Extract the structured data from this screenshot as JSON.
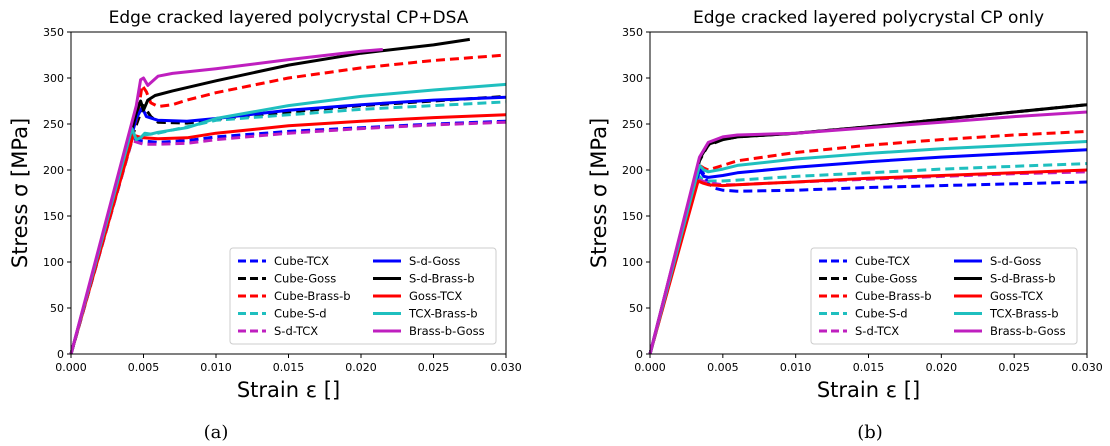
{
  "colors": {
    "Cube-TCX": "#0000ff",
    "Cube-Goss": "#000000",
    "Cube-Brass-b": "#ff0000",
    "Cube-S-d": "#1fbfbf",
    "S-d-TCX": "#bf1fbf",
    "S-d-Goss": "#0000ff",
    "S-d-Brass-b": "#000000",
    "Goss-TCX": "#ff0000",
    "TCX-Brass-b": "#1fbfbf",
    "Brass-b-Goss": "#bf1fbf"
  },
  "chart_data": [
    {
      "type": "line",
      "caption": "(a)",
      "title": "Edge cracked layered polycrystal CP+DSA",
      "xlabel": "Strain ε []",
      "ylabel": "Stress σ [MPa]",
      "xlim": [
        0,
        0.03
      ],
      "ylim": [
        0,
        350
      ],
      "xticks": [
        "0.000",
        "0.005",
        "0.010",
        "0.015",
        "0.020",
        "0.025",
        "0.030"
      ],
      "yticks": [
        "0",
        "50",
        "100",
        "150",
        "200",
        "250",
        "300",
        "350"
      ],
      "grid": false,
      "legend_position": "lower-right",
      "series": [
        {
          "name": "Cube-TCX",
          "dash": true,
          "x": [
            0,
            0.0042,
            0.0045,
            0.0048,
            0.006,
            0.008,
            0.01,
            0.015,
            0.02,
            0.025,
            0.03
          ],
          "y": [
            0,
            232,
            233,
            232,
            230,
            232,
            236,
            242,
            246,
            250,
            253
          ]
        },
        {
          "name": "Cube-Goss",
          "dash": true,
          "x": [
            0,
            0.0043,
            0.0048,
            0.005,
            0.0055,
            0.006,
            0.008,
            0.01,
            0.015,
            0.02,
            0.025,
            0.03
          ],
          "y": [
            0,
            240,
            262,
            270,
            258,
            252,
            251,
            255,
            263,
            270,
            275,
            280
          ]
        },
        {
          "name": "Cube-Brass-b",
          "dash": true,
          "x": [
            0,
            0.0046,
            0.0049,
            0.0052,
            0.0055,
            0.006,
            0.007,
            0.008,
            0.01,
            0.015,
            0.02,
            0.025,
            0.03
          ],
          "y": [
            0,
            260,
            292,
            285,
            273,
            269,
            271,
            276,
            284,
            300,
            311,
            319,
            325
          ]
        },
        {
          "name": "Cube-S-d",
          "dash": true,
          "x": [
            0,
            0.0043,
            0.0047,
            0.005,
            0.006,
            0.008,
            0.01,
            0.015,
            0.02,
            0.025,
            0.03
          ],
          "y": [
            0,
            237,
            235,
            238,
            240,
            247,
            254,
            260,
            266,
            270,
            274
          ]
        },
        {
          "name": "S-d-TCX",
          "dash": true,
          "x": [
            0,
            0.0042,
            0.0046,
            0.005,
            0.006,
            0.008,
            0.01,
            0.015,
            0.02,
            0.025,
            0.03
          ],
          "y": [
            0,
            232,
            230,
            228,
            228,
            229,
            233,
            240,
            245,
            249,
            252
          ]
        },
        {
          "name": "S-d-Goss",
          "dash": false,
          "x": [
            0,
            0.0045,
            0.0049,
            0.0052,
            0.006,
            0.008,
            0.01,
            0.015,
            0.02,
            0.025,
            0.03
          ],
          "y": [
            0,
            256,
            268,
            258,
            254,
            253,
            256,
            265,
            271,
            276,
            279
          ]
        },
        {
          "name": "S-d-Brass-b",
          "dash": false,
          "x": [
            0,
            0.0045,
            0.0048,
            0.005,
            0.0053,
            0.0058,
            0.007,
            0.01,
            0.015,
            0.02,
            0.025,
            0.0275
          ],
          "y": [
            0,
            262,
            275,
            265,
            276,
            281,
            286,
            297,
            314,
            327,
            336,
            342
          ]
        },
        {
          "name": "Goss-TCX",
          "dash": false,
          "x": [
            0,
            0.0043,
            0.0047,
            0.005,
            0.006,
            0.008,
            0.01,
            0.015,
            0.02,
            0.025,
            0.03
          ],
          "y": [
            0,
            238,
            236,
            235,
            234,
            235,
            240,
            248,
            253,
            257,
            260
          ]
        },
        {
          "name": "TCX-Brass-b",
          "dash": false,
          "x": [
            0,
            0.0042,
            0.0045,
            0.0048,
            0.0051,
            0.0055,
            0.006,
            0.008,
            0.01,
            0.015,
            0.02,
            0.025,
            0.03
          ],
          "y": [
            0,
            245,
            233,
            235,
            240,
            239,
            241,
            246,
            256,
            270,
            280,
            287,
            293
          ]
        },
        {
          "name": "Brass-b-Goss",
          "dash": false,
          "x": [
            0,
            0.0045,
            0.0048,
            0.005,
            0.0053,
            0.006,
            0.007,
            0.01,
            0.015,
            0.02,
            0.0215
          ],
          "y": [
            0,
            270,
            298,
            300,
            292,
            302,
            305,
            310,
            320,
            329,
            331
          ]
        }
      ]
    },
    {
      "type": "line",
      "caption": "(b)",
      "title": "Edge cracked layered polycrystal CP only",
      "xlabel": "Strain ε []",
      "ylabel": "Stress σ [MPa]",
      "xlim": [
        0,
        0.03
      ],
      "ylim": [
        0,
        350
      ],
      "xticks": [
        "0.000",
        "0.005",
        "0.010",
        "0.015",
        "0.020",
        "0.025",
        "0.030"
      ],
      "yticks": [
        "0",
        "50",
        "100",
        "150",
        "200",
        "250",
        "300",
        "350"
      ],
      "grid": false,
      "legend_position": "lower-right",
      "series": [
        {
          "name": "Cube-TCX",
          "dash": true,
          "x": [
            0,
            0.0034,
            0.0037,
            0.004,
            0.0045,
            0.005,
            0.006,
            0.01,
            0.015,
            0.02,
            0.025,
            0.03
          ],
          "y": [
            0,
            205,
            195,
            185,
            180,
            178,
            177,
            178,
            181,
            183,
            185,
            187
          ]
        },
        {
          "name": "Cube-Goss",
          "dash": true,
          "x": [
            0,
            0.0034,
            0.0037,
            0.004,
            0.005,
            0.006,
            0.01,
            0.015,
            0.02,
            0.025,
            0.03
          ],
          "y": [
            0,
            210,
            219,
            227,
            233,
            236,
            240,
            247,
            255,
            263,
            271
          ]
        },
        {
          "name": "Cube-Brass-b",
          "dash": true,
          "x": [
            0,
            0.0034,
            0.0037,
            0.004,
            0.005,
            0.006,
            0.01,
            0.015,
            0.02,
            0.025,
            0.03
          ],
          "y": [
            0,
            205,
            202,
            200,
            205,
            210,
            219,
            227,
            233,
            238,
            242
          ]
        },
        {
          "name": "Cube-S-d",
          "dash": true,
          "x": [
            0,
            0.0033,
            0.0036,
            0.004,
            0.005,
            0.006,
            0.01,
            0.015,
            0.02,
            0.025,
            0.03
          ],
          "y": [
            0,
            194,
            190,
            188,
            188,
            189,
            193,
            197,
            201,
            204,
            207
          ]
        },
        {
          "name": "S-d-TCX",
          "dash": true,
          "x": [
            0,
            0.0033,
            0.0036,
            0.004,
            0.005,
            0.006,
            0.01,
            0.015,
            0.02,
            0.025,
            0.03
          ],
          "y": [
            0,
            190,
            188,
            186,
            184,
            184,
            187,
            190,
            193,
            196,
            198
          ]
        },
        {
          "name": "S-d-Goss",
          "dash": false,
          "x": [
            0,
            0.0034,
            0.0037,
            0.004,
            0.005,
            0.006,
            0.01,
            0.015,
            0.02,
            0.025,
            0.03
          ],
          "y": [
            0,
            200,
            193,
            192,
            194,
            197,
            203,
            209,
            214,
            218,
            222
          ]
        },
        {
          "name": "S-d-Brass-b",
          "dash": false,
          "x": [
            0,
            0.0034,
            0.0037,
            0.004,
            0.005,
            0.006,
            0.01,
            0.015,
            0.02,
            0.025,
            0.03
          ],
          "y": [
            0,
            212,
            220,
            228,
            233,
            236,
            240,
            247,
            255,
            263,
            271
          ]
        },
        {
          "name": "Goss-TCX",
          "dash": false,
          "x": [
            0,
            0.0033,
            0.0036,
            0.004,
            0.005,
            0.006,
            0.01,
            0.015,
            0.02,
            0.025,
            0.03
          ],
          "y": [
            0,
            188,
            186,
            184,
            183,
            184,
            187,
            191,
            194,
            197,
            200
          ]
        },
        {
          "name": "TCX-Brass-b",
          "dash": false,
          "x": [
            0,
            0.0034,
            0.0037,
            0.004,
            0.005,
            0.006,
            0.01,
            0.015,
            0.02,
            0.025,
            0.03
          ],
          "y": [
            0,
            205,
            200,
            198,
            201,
            205,
            212,
            218,
            223,
            227,
            231
          ]
        },
        {
          "name": "Brass-b-Goss",
          "dash": false,
          "x": [
            0,
            0.0034,
            0.0037,
            0.004,
            0.005,
            0.006,
            0.01,
            0.015,
            0.02,
            0.025,
            0.03
          ],
          "y": [
            0,
            214,
            222,
            230,
            236,
            238,
            240,
            246,
            252,
            258,
            263
          ]
        }
      ]
    }
  ]
}
